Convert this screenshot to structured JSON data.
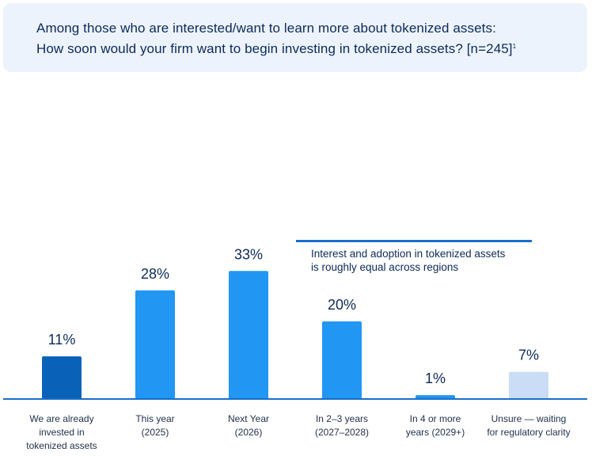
{
  "header": {
    "title_line1": "Among those who are interested/want to learn more about tokenized assets:",
    "title_line2": "How soon would your firm want to begin investing in tokenized assets?  [n=245]",
    "footnote_marker": "1"
  },
  "annotation": {
    "line1": "Interest and adoption in tokenized assets",
    "line2": "is roughly equal across regions"
  },
  "chart_data": {
    "type": "bar",
    "title": "How soon would your firm want to begin investing in tokenized assets?",
    "categories": [
      [
        "We are already",
        "invested in",
        "tokenized assets"
      ],
      [
        "This year",
        "(2025)"
      ],
      [
        "Next Year",
        "(2026)"
      ],
      [
        "In 2–3 years",
        "(2027–2028)"
      ],
      [
        "In 4 or more",
        "years (2029+)"
      ],
      [
        "Unsure — waiting",
        "for regulatory clarity"
      ]
    ],
    "values": [
      11,
      28,
      33,
      20,
      1,
      7
    ],
    "value_labels": [
      "11%",
      "28%",
      "33%",
      "20%",
      "1%",
      "7%"
    ],
    "colors": [
      "#0a62b8",
      "#2196f3",
      "#2196f3",
      "#2196f3",
      "#2196f3",
      "#cadcf6"
    ],
    "axis_color": "#1a6fc9",
    "value_label_color": "#0b2a5b",
    "ylim": [
      0,
      33
    ],
    "xlabel": "",
    "ylabel": ""
  }
}
